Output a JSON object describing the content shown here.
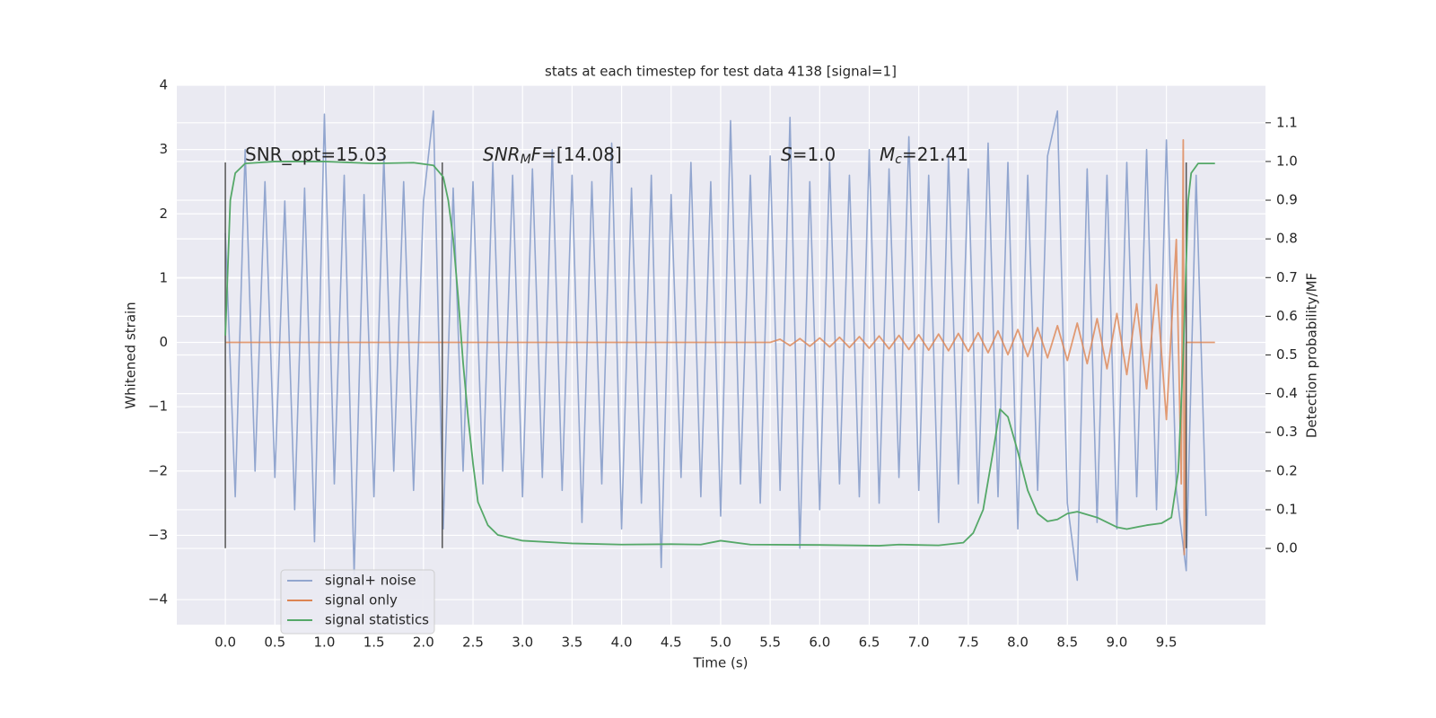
{
  "chart_data": {
    "type": "line",
    "title": "stats at each timestep for test data 4138 [signal=1]",
    "x_label": "Time (s)",
    "y_label": "Whitened strain",
    "y2_label": "Detection probability/MF",
    "background": "#eaeaf2",
    "grid": true,
    "xlim": [
      -0.49,
      10.5
    ],
    "ylim": [
      -4.39,
      4.0
    ],
    "y2lim": [
      -0.197,
      1.197
    ],
    "xticks": [
      {
        "value": 0,
        "label": "0.0"
      },
      {
        "value": 0.5,
        "label": "0.5"
      },
      {
        "value": 1,
        "label": "1.0"
      },
      {
        "value": 1.5,
        "label": "1.5"
      },
      {
        "value": 2,
        "label": "2.0"
      },
      {
        "value": 2.5,
        "label": "2.5"
      },
      {
        "value": 3,
        "label": "3.0"
      },
      {
        "value": 3.5,
        "label": "3.5"
      },
      {
        "value": 4,
        "label": "4.0"
      },
      {
        "value": 4.5,
        "label": "4.5"
      },
      {
        "value": 5,
        "label": "5.0"
      },
      {
        "value": 5.5,
        "label": "5.5"
      },
      {
        "value": 6,
        "label": "6.0"
      },
      {
        "value": 6.5,
        "label": "6.5"
      },
      {
        "value": 7,
        "label": "7.0"
      },
      {
        "value": 7.5,
        "label": "7.5"
      },
      {
        "value": 8,
        "label": "8.0"
      },
      {
        "value": 8.5,
        "label": "8.5"
      },
      {
        "value": 9,
        "label": "9.0"
      },
      {
        "value": 9.5,
        "label": "9.5"
      }
    ],
    "yticks": [
      {
        "value": -4,
        "label": "−4"
      },
      {
        "value": -3,
        "label": "−3"
      },
      {
        "value": -2,
        "label": "−2"
      },
      {
        "value": -1,
        "label": "−1"
      },
      0,
      1,
      2,
      3,
      4
    ],
    "y2ticks": [
      {
        "value": 0,
        "label": "0.0"
      },
      {
        "value": 0.1,
        "label": "0.1"
      },
      {
        "value": 0.2,
        "label": "0.2"
      },
      {
        "value": 0.3,
        "label": "0.3"
      },
      {
        "value": 0.4,
        "label": "0.4"
      },
      {
        "value": 0.5,
        "label": "0.5"
      },
      {
        "value": 0.6,
        "label": "0.6"
      },
      {
        "value": 0.7,
        "label": "0.7"
      },
      {
        "value": 0.8,
        "label": "0.8"
      },
      {
        "value": 0.9,
        "label": "0.9"
      },
      {
        "value": 1.0,
        "label": "1.0"
      },
      {
        "value": 1.1,
        "label": "1.1"
      }
    ],
    "annotations": [
      {
        "parts": [
          {
            "text": "SNR_opt=15.03",
            "style": "normal"
          }
        ]
      },
      {
        "parts": [
          {
            "text": "SNR",
            "style": "italic"
          },
          {
            "text": "M",
            "style": "italic-sub"
          },
          {
            "text": "F",
            "style": "italic"
          },
          {
            "text": "=[14.08]",
            "style": "normal"
          }
        ]
      },
      {
        "parts": [
          {
            "text": "S",
            "style": "italic"
          },
          {
            "text": "=1.0",
            "style": "normal"
          }
        ]
      },
      {
        "parts": [
          {
            "text": "M",
            "style": "italic"
          },
          {
            "text": "c",
            "style": "italic-sub"
          },
          {
            "text": "=21.41",
            "style": "normal"
          }
        ]
      }
    ],
    "vlines": {
      "x": [
        0,
        2.19,
        9.7
      ],
      "ymin": -3.2,
      "ymax": 2.8,
      "color": "#555555"
    },
    "series": [
      {
        "name": "signal+ noise",
        "color": "#92a6cf",
        "axis": "y",
        "x": [
          0.0,
          0.1,
          0.2,
          0.3,
          0.4,
          0.5,
          0.6,
          0.7,
          0.8,
          0.9,
          1.0,
          1.1,
          1.2,
          1.3,
          1.4,
          1.5,
          1.6,
          1.7,
          1.8,
          1.9,
          2.0,
          2.1,
          2.2,
          2.3,
          2.4,
          2.5,
          2.6,
          2.7,
          2.8,
          2.9,
          3.0,
          3.1,
          3.2,
          3.3,
          3.4,
          3.5,
          3.6,
          3.7,
          3.8,
          3.9,
          4.0,
          4.1,
          4.2,
          4.3,
          4.4,
          4.5,
          4.6,
          4.7,
          4.8,
          4.9,
          5.0,
          5.1,
          5.2,
          5.3,
          5.4,
          5.5,
          5.6,
          5.7,
          5.8,
          5.9,
          6.0,
          6.1,
          6.2,
          6.3,
          6.4,
          6.5,
          6.6,
          6.7,
          6.8,
          6.9,
          7.0,
          7.1,
          7.2,
          7.3,
          7.4,
          7.5,
          7.6,
          7.7,
          7.8,
          7.9,
          8.0,
          8.1,
          8.2,
          8.3,
          8.4,
          8.5,
          8.6,
          8.7,
          8.8,
          8.9,
          9.0,
          9.1,
          9.2,
          9.3,
          9.4,
          9.5,
          9.6,
          9.7,
          9.8,
          9.9
        ],
        "values": [
          1.7,
          -2.4,
          3.0,
          -2.0,
          2.5,
          -2.1,
          2.2,
          -2.6,
          2.4,
          -3.1,
          3.55,
          -2.2,
          2.6,
          -3.6,
          2.3,
          -2.4,
          2.9,
          -2.0,
          2.5,
          -2.3,
          2.2,
          3.6,
          -2.9,
          2.4,
          -2.0,
          2.5,
          -2.2,
          2.8,
          -2.0,
          2.6,
          -2.4,
          2.7,
          -2.1,
          3.0,
          -2.3,
          2.6,
          -2.8,
          2.5,
          -2.2,
          3.1,
          -2.9,
          2.4,
          -2.5,
          2.6,
          -3.5,
          2.3,
          -2.1,
          2.8,
          -2.4,
          2.5,
          -2.7,
          3.45,
          -2.2,
          2.6,
          -2.5,
          2.9,
          -2.3,
          3.5,
          -3.2,
          2.5,
          -2.6,
          2.8,
          -2.2,
          2.6,
          -2.4,
          3.0,
          -2.5,
          2.7,
          -2.1,
          3.2,
          -2.3,
          2.6,
          -2.8,
          2.9,
          -2.2,
          2.7,
          -2.5,
          3.1,
          -2.4,
          2.8,
          -2.9,
          2.6,
          -2.3,
          2.9,
          3.6,
          -2.5,
          -3.7,
          2.7,
          -2.8,
          2.6,
          -2.9,
          2.8,
          -2.4,
          3.0,
          -2.6,
          3.15,
          -2.3,
          -3.55,
          2.6,
          -2.7
        ]
      },
      {
        "name": "signal only",
        "color": "#dd8452",
        "axis": "y",
        "x": [
          0,
          5.5,
          5.6,
          5.7,
          5.8,
          5.9,
          6.0,
          6.1,
          6.2,
          6.3,
          6.4,
          6.5,
          6.6,
          6.7,
          6.8,
          6.9,
          7.0,
          7.1,
          7.2,
          7.3,
          7.4,
          7.5,
          7.6,
          7.7,
          7.8,
          7.9,
          8.0,
          8.1,
          8.2,
          8.3,
          8.4,
          8.5,
          8.6,
          8.7,
          8.8,
          8.9,
          9.0,
          9.1,
          9.2,
          9.3,
          9.4,
          9.5,
          9.6,
          9.65,
          9.67,
          9.68,
          9.7,
          9.99
        ],
        "values": [
          0,
          0,
          0.05,
          -0.05,
          0.06,
          -0.06,
          0.07,
          -0.07,
          0.08,
          -0.08,
          0.09,
          -0.09,
          0.1,
          -0.1,
          0.11,
          -0.11,
          0.12,
          -0.12,
          0.13,
          -0.13,
          0.14,
          -0.14,
          0.15,
          -0.16,
          0.18,
          -0.19,
          0.2,
          -0.22,
          0.23,
          -0.24,
          0.26,
          -0.28,
          0.3,
          -0.33,
          0.37,
          -0.41,
          0.45,
          -0.5,
          0.6,
          -0.72,
          0.9,
          -1.2,
          1.6,
          -2.2,
          3.15,
          -3.3,
          0,
          0
        ]
      },
      {
        "name": "signal statistics",
        "color": "#55a868",
        "axis": "y2",
        "x": [
          0,
          0.05,
          0.1,
          0.2,
          0.5,
          1.0,
          1.5,
          1.9,
          2.1,
          2.2,
          2.25,
          2.3,
          2.35,
          2.4,
          2.45,
          2.5,
          2.55,
          2.65,
          2.75,
          3.0,
          3.5,
          4.0,
          4.5,
          4.8,
          5.0,
          5.3,
          6.0,
          6.6,
          6.8,
          7.2,
          7.45,
          7.55,
          7.65,
          7.75,
          7.82,
          7.9,
          8.0,
          8.1,
          8.2,
          8.3,
          8.4,
          8.5,
          8.6,
          8.8,
          9.0,
          9.1,
          9.3,
          9.45,
          9.55,
          9.62,
          9.67,
          9.72,
          9.75,
          9.82,
          9.99
        ],
        "values": [
          0.55,
          0.9,
          0.97,
          0.995,
          1.0,
          1.0,
          0.995,
          0.997,
          0.99,
          0.96,
          0.9,
          0.8,
          0.65,
          0.48,
          0.34,
          0.22,
          0.12,
          0.06,
          0.035,
          0.02,
          0.013,
          0.01,
          0.011,
          0.01,
          0.02,
          0.01,
          0.009,
          0.007,
          0.01,
          0.008,
          0.015,
          0.04,
          0.1,
          0.25,
          0.36,
          0.34,
          0.25,
          0.15,
          0.09,
          0.07,
          0.075,
          0.09,
          0.095,
          0.08,
          0.055,
          0.05,
          0.06,
          0.065,
          0.08,
          0.2,
          0.5,
          0.9,
          0.97,
          0.995,
          0.995
        ]
      }
    ]
  }
}
